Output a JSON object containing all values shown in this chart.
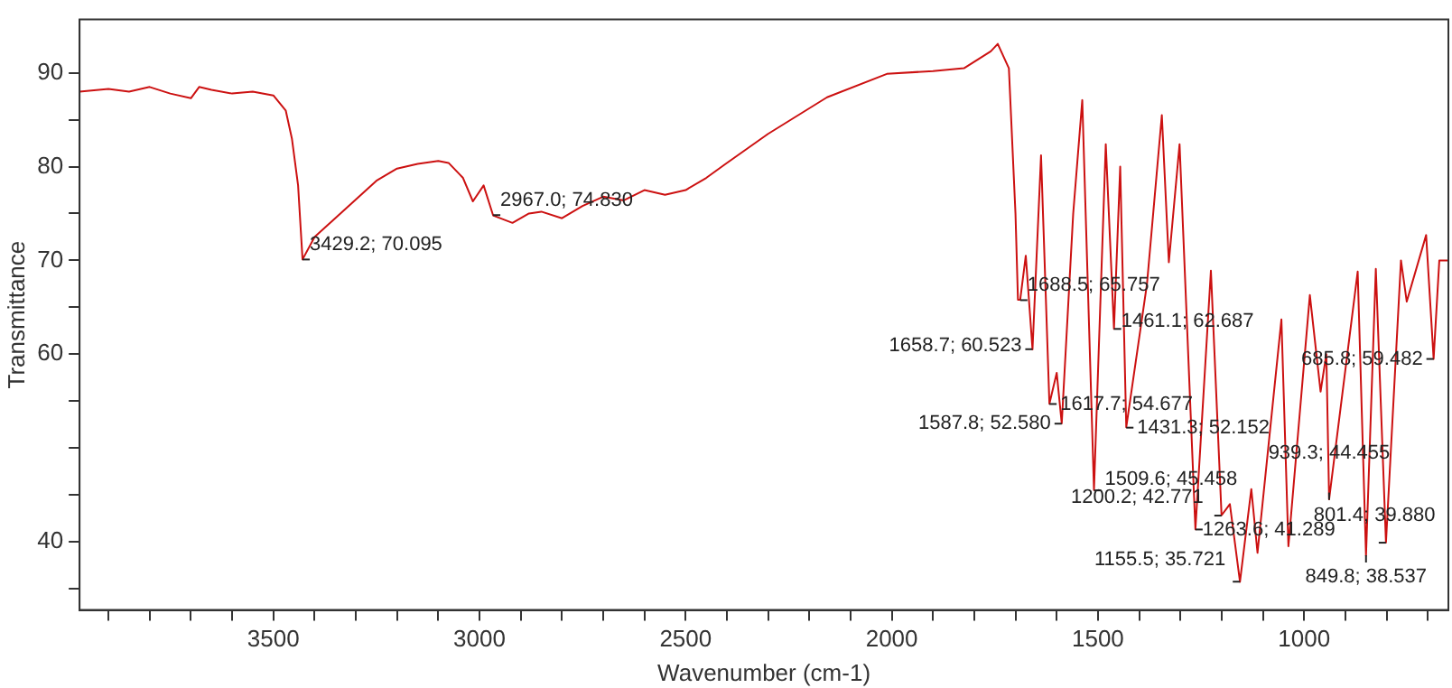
{
  "chart_data": {
    "type": "line",
    "xlabel": "Wavenumber (cm-1)",
    "ylabel": "Transmittance",
    "xlim": [
      3970,
      650
    ],
    "ylim": [
      32.7,
      95.7
    ],
    "xticks": [
      {
        "value": 3900,
        "label": null
      },
      {
        "value": 3800,
        "label": null
      },
      {
        "value": 3700,
        "label": null
      },
      {
        "value": 3600,
        "label": null
      },
      3500,
      {
        "value": 3400,
        "label": null
      },
      {
        "value": 3300,
        "label": null
      },
      {
        "value": 3200,
        "label": null
      },
      {
        "value": 3100,
        "label": null
      },
      3000,
      {
        "value": 2900,
        "label": null
      },
      {
        "value": 2800,
        "label": null
      },
      {
        "value": 2700,
        "label": null
      },
      {
        "value": 2600,
        "label": null
      },
      2500,
      {
        "value": 2400,
        "label": null
      },
      {
        "value": 2300,
        "label": null
      },
      {
        "value": 2200,
        "label": null
      },
      {
        "value": 2100,
        "label": null
      },
      2000,
      {
        "value": 1900,
        "label": null
      },
      {
        "value": 1800,
        "label": null
      },
      {
        "value": 1700,
        "label": null
      },
      {
        "value": 1600,
        "label": null
      },
      1500,
      {
        "value": 1400,
        "label": null
      },
      {
        "value": 1300,
        "label": null
      },
      {
        "value": 1200,
        "label": null
      },
      {
        "value": 1100,
        "label": null
      },
      1000,
      {
        "value": 900,
        "label": null
      },
      {
        "value": 800,
        "label": null
      },
      {
        "value": 700,
        "label": null
      }
    ],
    "yticks": [
      {
        "value": 35,
        "label": null
      },
      40,
      {
        "value": 45,
        "label": null
      },
      {
        "value": 50,
        "label": null
      },
      {
        "value": 55,
        "label": null
      },
      60,
      {
        "value": 65,
        "label": null
      },
      70,
      {
        "value": 75,
        "label": null
      },
      80,
      {
        "value": 85,
        "label": null
      },
      90
    ],
    "grid": false,
    "legend": false,
    "marker": "none",
    "line_style": "solid",
    "series": [
      {
        "color": "#cc1111",
        "x": [
          3970,
          3900,
          3850,
          3800,
          3750,
          3700,
          3680,
          3650,
          3600,
          3550,
          3500,
          3470,
          3455,
          3440,
          3429.2,
          3400,
          3350,
          3300,
          3250,
          3200,
          3150,
          3100,
          3075,
          3040,
          3016,
          2990,
          2967,
          2950,
          2920,
          2880,
          2850,
          2800,
          2750,
          2700,
          2650,
          2600,
          2550,
          2500,
          2450,
          2403,
          2300,
          2157,
          2012,
          1900,
          1825,
          1760,
          1743,
          1716,
          1700,
          1694,
          1688.5,
          1675,
          1658.7,
          1638,
          1617.7,
          1600,
          1587.8,
          1560,
          1538,
          1509.6,
          1481,
          1461.1,
          1446,
          1431.3,
          1381,
          1345,
          1328,
          1302,
          1263.6,
          1226,
          1200.2,
          1180,
          1155.5,
          1128,
          1113,
          1055,
          1038,
          986,
          960,
          946,
          939.3,
          870,
          849.8,
          826,
          801.4,
          765,
          751,
          704,
          685.8,
          672,
          652
        ],
        "values": [
          88,
          88.3,
          88,
          88.5,
          87.8,
          87.3,
          88.5,
          88.2,
          87.8,
          88,
          87.6,
          86,
          83,
          78,
          70.1,
          72.5,
          74.5,
          76.5,
          78.5,
          79.8,
          80.3,
          80.6,
          80.4,
          78.8,
          76.3,
          78,
          74.8,
          74.5,
          74,
          75,
          75.2,
          74.5,
          75.8,
          76.8,
          76.4,
          77.5,
          77,
          77.5,
          78.8,
          80.3,
          83.5,
          87.4,
          89.9,
          90.2,
          90.5,
          92.3,
          93.1,
          90.5,
          75,
          65.8,
          65.8,
          70.5,
          60.5,
          81.2,
          54.7,
          58,
          52.6,
          75,
          87.1,
          45.5,
          82.4,
          62.7,
          80,
          52.2,
          67.5,
          85.5,
          69.8,
          82.4,
          41.3,
          68.9,
          42.8,
          44,
          35.7,
          45.6,
          38.8,
          63.7,
          39.5,
          66.3,
          56,
          60,
          44.5,
          68.8,
          38.5,
          69.1,
          39.9,
          70,
          65.6,
          72.7,
          59.5,
          70,
          70
        ]
      }
    ],
    "annotations": [
      {
        "text": "3429.2; 70.095",
        "x": 3429.2,
        "y": 70.095
      },
      {
        "text": "2967.0; 74.830",
        "x": 2967,
        "y": 74.83
      },
      {
        "text": "1688.5; 65.757",
        "x": 1688.5,
        "y": 65.757
      },
      {
        "text": "1658.7; 60.523",
        "x": 1658.7,
        "y": 60.523
      },
      {
        "text": "1461.1; 62.687",
        "x": 1461.1,
        "y": 62.687
      },
      {
        "text": "1617.7; 54.677",
        "x": 1617.7,
        "y": 54.677
      },
      {
        "text": "1587.8; 52.580",
        "x": 1587.8,
        "y": 52.58
      },
      {
        "text": "1431.3; 52.152",
        "x": 1431.3,
        "y": 52.152
      },
      {
        "text": "1509.6; 45.458",
        "x": 1509.6,
        "y": 45.458
      },
      {
        "text": "801.4; 39.880",
        "x": 801.4,
        "y": 39.88
      },
      {
        "text": "1200.2; 42.771",
        "x": 1200.2,
        "y": 42.771
      },
      {
        "text": "1263.6; 41.289",
        "x": 1263.6,
        "y": 41.289
      },
      {
        "text": "1155.5; 35.721",
        "x": 1155.5,
        "y": 35.721
      },
      {
        "text": "939.3; 44.455",
        "x": 939.3,
        "y": 44.455
      },
      {
        "text": "849.8; 38.537",
        "x": 849.8,
        "y": 38.537
      },
      {
        "text": "685.8; 59.482",
        "x": 685.8,
        "y": 59.482
      }
    ]
  }
}
